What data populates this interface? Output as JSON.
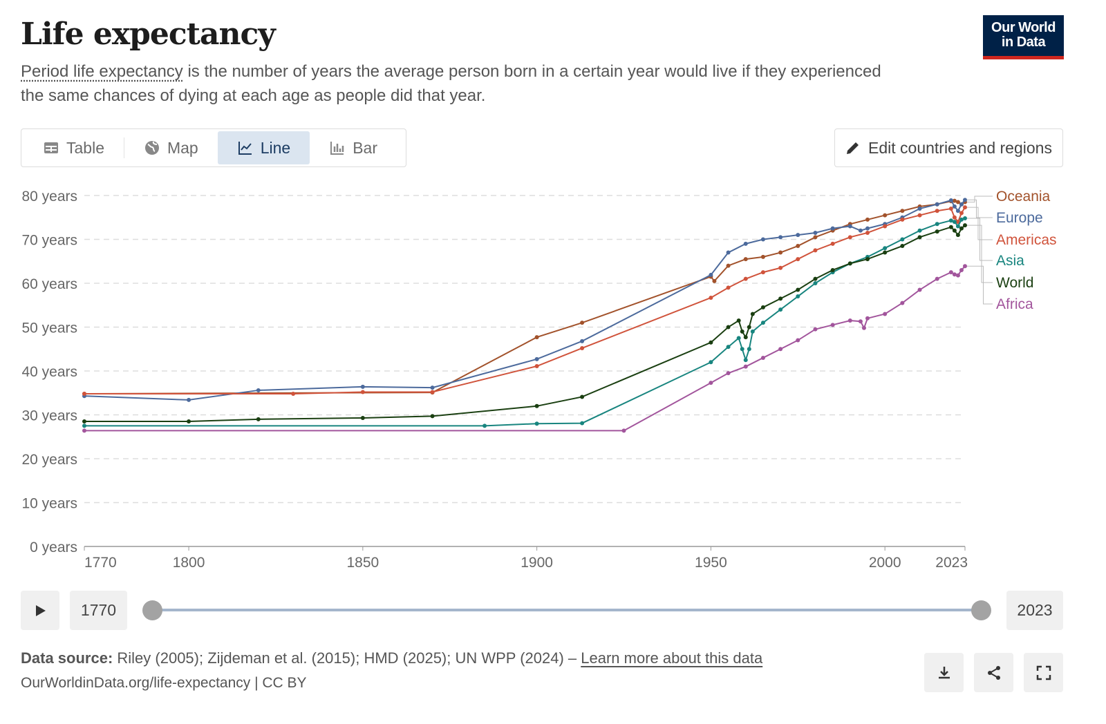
{
  "header": {
    "title": "Life expectancy",
    "subtitle_term": "Period life expectancy",
    "subtitle_rest": " is the number of years the average person born in a certain year would live if they experienced the same chances of dying at each age as people did that year.",
    "logo_text": "Our World in Data"
  },
  "tabs": [
    {
      "label": "Table",
      "icon": "table-icon"
    },
    {
      "label": "Map",
      "icon": "globe-icon"
    },
    {
      "label": "Line",
      "icon": "line-chart-icon",
      "active": true
    },
    {
      "label": "Bar",
      "icon": "bar-chart-icon"
    }
  ],
  "edit_button": {
    "label": "Edit countries and regions",
    "icon": "pencil-icon"
  },
  "timeline": {
    "start": "1770",
    "end": "2023",
    "start_fraction": 0,
    "end_fraction": 1
  },
  "footer": {
    "source_label": "Data source:",
    "source_text": " Riley (2005); Zijdeman et al. (2015); HMD (2025); UN WPP (2024) – ",
    "learn_more": "Learn more about this data",
    "url": "OurWorldinData.org/life-expectancy | CC BY",
    "buttons": [
      "download-icon",
      "share-icon",
      "fullscreen-icon"
    ]
  },
  "chart_data": {
    "type": "line",
    "xlim": [
      1770,
      2023
    ],
    "ylim": [
      0,
      80
    ],
    "x_ticks": [
      1770,
      1800,
      1850,
      1900,
      1950,
      2000,
      2023
    ],
    "y_ticks": [
      0,
      10,
      20,
      30,
      40,
      50,
      60,
      70,
      80
    ],
    "y_tick_suffix": " years",
    "grid": "horizontal dashed",
    "legend": "right, end-labels",
    "series": [
      {
        "name": "Oceania",
        "color": "#a2522b",
        "points": [
          [
            1770,
            34.8
          ],
          [
            1870,
            35.1
          ],
          [
            1900,
            47.7
          ],
          [
            1913,
            51.0
          ],
          [
            1950,
            61.5
          ],
          [
            1951,
            60.5
          ],
          [
            1955,
            64
          ],
          [
            1960,
            65.5
          ],
          [
            1965,
            66
          ],
          [
            1970,
            67
          ],
          [
            1975,
            68.5
          ],
          [
            1980,
            70.5
          ],
          [
            1985,
            72
          ],
          [
            1990,
            73.5
          ],
          [
            1995,
            74.5
          ],
          [
            2000,
            75.5
          ],
          [
            2005,
            76.5
          ],
          [
            2010,
            77.5
          ],
          [
            2015,
            78
          ],
          [
            2019,
            78.7
          ],
          [
            2020,
            78.8
          ],
          [
            2021,
            78.5
          ],
          [
            2022,
            78
          ],
          [
            2023,
            78.5
          ]
        ]
      },
      {
        "name": "Europe",
        "color": "#4c6a9c",
        "points": [
          [
            1770,
            34.3
          ],
          [
            1800,
            33.4
          ],
          [
            1820,
            35.6
          ],
          [
            1850,
            36.4
          ],
          [
            1870,
            36.2
          ],
          [
            1900,
            42.7
          ],
          [
            1913,
            46.8
          ],
          [
            1950,
            61.9
          ],
          [
            1955,
            67
          ],
          [
            1960,
            69
          ],
          [
            1965,
            70
          ],
          [
            1970,
            70.5
          ],
          [
            1975,
            71
          ],
          [
            1980,
            71.5
          ],
          [
            1985,
            72.5
          ],
          [
            1990,
            73
          ],
          [
            1993,
            72
          ],
          [
            1995,
            72.5
          ],
          [
            2000,
            73.5
          ],
          [
            2005,
            75
          ],
          [
            2010,
            77
          ],
          [
            2015,
            78
          ],
          [
            2019,
            78.9
          ],
          [
            2020,
            77.5
          ],
          [
            2021,
            76.5
          ],
          [
            2022,
            78
          ],
          [
            2023,
            79
          ]
        ]
      },
      {
        "name": "Americas",
        "color": "#d0533b",
        "points": [
          [
            1770,
            34.8
          ],
          [
            1830,
            34.8
          ],
          [
            1850,
            35.2
          ],
          [
            1870,
            35.2
          ],
          [
            1900,
            41.1
          ],
          [
            1913,
            45.2
          ],
          [
            1950,
            56.7
          ],
          [
            1955,
            59
          ],
          [
            1960,
            61
          ],
          [
            1965,
            62.5
          ],
          [
            1970,
            63.5
          ],
          [
            1975,
            65.5
          ],
          [
            1980,
            67.5
          ],
          [
            1985,
            69
          ],
          [
            1990,
            70.5
          ],
          [
            1995,
            71.5
          ],
          [
            2000,
            73
          ],
          [
            2005,
            74.5
          ],
          [
            2010,
            75.5
          ],
          [
            2015,
            76.5
          ],
          [
            2019,
            77
          ],
          [
            2020,
            75
          ],
          [
            2021,
            74
          ],
          [
            2022,
            76
          ],
          [
            2023,
            77.3
          ]
        ]
      },
      {
        "name": "Asia",
        "color": "#18857f",
        "points": [
          [
            1770,
            27.5
          ],
          [
            1885,
            27.5
          ],
          [
            1900,
            28
          ],
          [
            1913,
            28.1
          ],
          [
            1950,
            42
          ],
          [
            1955,
            45.5
          ],
          [
            1958,
            47.5
          ],
          [
            1959,
            45
          ],
          [
            1960,
            42.5
          ],
          [
            1961,
            45
          ],
          [
            1962,
            49
          ],
          [
            1965,
            51
          ],
          [
            1970,
            54
          ],
          [
            1975,
            57
          ],
          [
            1980,
            60
          ],
          [
            1985,
            62.5
          ],
          [
            1990,
            64.5
          ],
          [
            1995,
            66
          ],
          [
            2000,
            68
          ],
          [
            2005,
            70
          ],
          [
            2010,
            72
          ],
          [
            2015,
            73.5
          ],
          [
            2019,
            74.3
          ],
          [
            2020,
            74
          ],
          [
            2021,
            73
          ],
          [
            2022,
            74.5
          ],
          [
            2023,
            74.8
          ]
        ]
      },
      {
        "name": "World",
        "color": "#1a3f11",
        "points": [
          [
            1770,
            28.5
          ],
          [
            1800,
            28.5
          ],
          [
            1820,
            29
          ],
          [
            1850,
            29.3
          ],
          [
            1870,
            29.7
          ],
          [
            1900,
            32
          ],
          [
            1913,
            34.1
          ],
          [
            1950,
            46.5
          ],
          [
            1955,
            50
          ],
          [
            1958,
            51.5
          ],
          [
            1959,
            49
          ],
          [
            1960,
            47.7
          ],
          [
            1961,
            50
          ],
          [
            1962,
            53
          ],
          [
            1965,
            54.5
          ],
          [
            1970,
            56.5
          ],
          [
            1975,
            58.5
          ],
          [
            1980,
            61
          ],
          [
            1985,
            63
          ],
          [
            1990,
            64.5
          ],
          [
            1995,
            65.5
          ],
          [
            2000,
            67
          ],
          [
            2005,
            68.5
          ],
          [
            2010,
            70.5
          ],
          [
            2015,
            71.8
          ],
          [
            2019,
            72.8
          ],
          [
            2020,
            72
          ],
          [
            2021,
            71
          ],
          [
            2022,
            72.5
          ],
          [
            2023,
            73.2
          ]
        ]
      },
      {
        "name": "Africa",
        "color": "#a2559c",
        "points": [
          [
            1770,
            26.4
          ],
          [
            1925,
            26.4
          ],
          [
            1950,
            37.3
          ],
          [
            1955,
            39.5
          ],
          [
            1960,
            41
          ],
          [
            1965,
            43
          ],
          [
            1970,
            45
          ],
          [
            1975,
            47
          ],
          [
            1980,
            49.5
          ],
          [
            1985,
            50.5
          ],
          [
            1990,
            51.5
          ],
          [
            1993,
            51.3
          ],
          [
            1994,
            49.8
          ],
          [
            1995,
            52
          ],
          [
            2000,
            53
          ],
          [
            2005,
            55.5
          ],
          [
            2010,
            58.5
          ],
          [
            2015,
            61
          ],
          [
            2019,
            62.5
          ],
          [
            2020,
            62
          ],
          [
            2021,
            61.8
          ],
          [
            2022,
            63
          ],
          [
            2023,
            63.9
          ]
        ]
      }
    ]
  }
}
